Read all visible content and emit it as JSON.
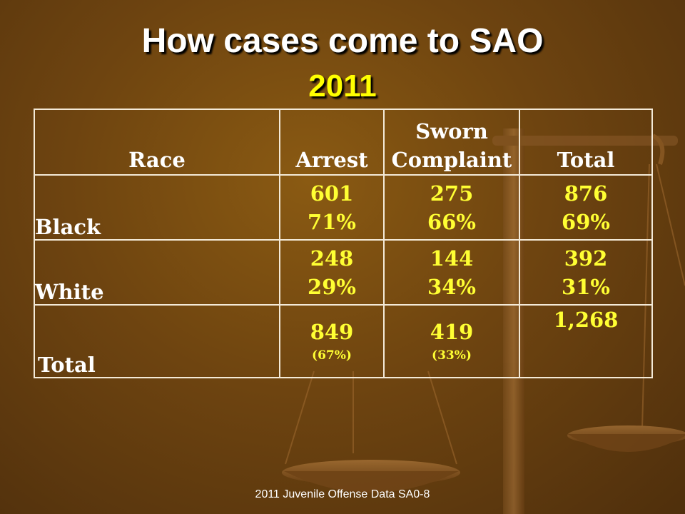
{
  "title": "How cases come to SAO",
  "year": "2011",
  "table": {
    "headers": [
      "Race",
      "Arrest",
      "Sworn Complaint",
      "Total"
    ],
    "header_sworn_line1": "Sworn",
    "header_sworn_line2": "Complaint",
    "rows": [
      {
        "race": "Black",
        "arrest": "601",
        "arrest_pct": "71%",
        "sworn": "275",
        "sworn_pct": "66%",
        "total": "876",
        "total_pct": "69%"
      },
      {
        "race": "White",
        "arrest": "248",
        "arrest_pct": "29%",
        "sworn": "144",
        "sworn_pct": "34%",
        "total": "392",
        "total_pct": "31%"
      }
    ],
    "total_row": {
      "label": "Total",
      "arrest": "849",
      "arrest_pct": "(67%)",
      "sworn": "419",
      "sworn_pct": "(33%)",
      "total": "1,268"
    }
  },
  "footer": "2011 Juvenile Offense Data   SA0-8",
  "colors": {
    "background": "#6e4410",
    "title": "#ffffff",
    "year": "#ffff00",
    "values": "#ffff33",
    "grid": "#f4ead8"
  }
}
